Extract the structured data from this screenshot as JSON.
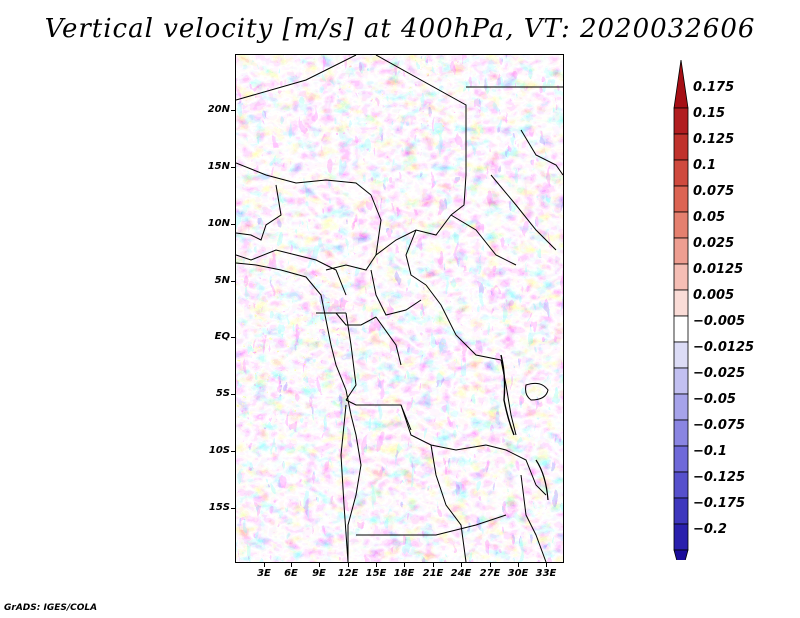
{
  "title": "Vertical velocity [m/s] at 400hPa, VT: 2020032606",
  "credit": "GrADS: IGES/COLA",
  "map": {
    "lat_labels": [
      "20N",
      "15N",
      "10N",
      "5N",
      "EQ",
      "5S",
      "10S",
      "15S"
    ],
    "lon_labels": [
      "3E",
      "6E",
      "9E",
      "12E",
      "15E",
      "18E",
      "21E",
      "24E",
      "27E",
      "30E",
      "33E"
    ]
  },
  "colorbar": {
    "labels": [
      "0.175",
      "0.15",
      "0.125",
      "0.1",
      "0.075",
      "0.05",
      "0.025",
      "0.0125",
      "0.005",
      "−0.005",
      "−0.0125",
      "−0.025",
      "−0.05",
      "−0.075",
      "−0.1",
      "−0.125",
      "−0.175",
      "−0.2"
    ],
    "colors": [
      "#a50f15",
      "#b11d20",
      "#c0322c",
      "#cf4a3e",
      "#dc6453",
      "#e5806f",
      "#ee9e91",
      "#f5beb5",
      "#fadcd7",
      "#ffffff",
      "#dcdcf6",
      "#c2c0f1",
      "#a6a3ea",
      "#8a85e2",
      "#6f69d9",
      "#5650cc",
      "#3e37bd",
      "#2a20ad",
      "#1b0d9a"
    ]
  }
}
